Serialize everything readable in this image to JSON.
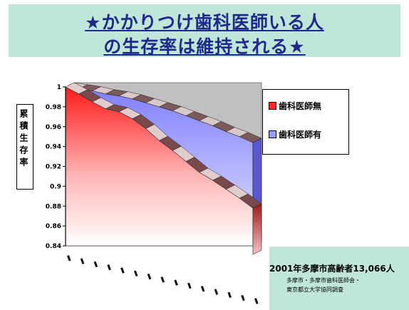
{
  "title": {
    "line1": "★かかりつけ歯科医師いる人",
    "line2": "の生存率は維持される★"
  },
  "colors": {
    "title_bg": "#bfe6d8",
    "title_text": "#1e2a8a",
    "series_no_dentist": "#ff2a2a",
    "series_has_dentist": "#9a9aff",
    "back_wall": "#c0c0c0"
  },
  "chart_data": {
    "type": "area",
    "ylabel": "累積生存率",
    "ylim": [
      0.84,
      1.0
    ],
    "y_ticks": [
      "1",
      "0.98",
      "0.96",
      "0.94",
      "0.92",
      "0.9",
      "0.88",
      "0.86",
      "0.84"
    ],
    "x_count": 15,
    "series": [
      {
        "name": "歯科医師無",
        "values": [
          1.0,
          0.993,
          0.985,
          0.978,
          0.975,
          0.968,
          0.958,
          0.946,
          0.936,
          0.925,
          0.914,
          0.906,
          0.897,
          0.888,
          0.878
        ]
      },
      {
        "name": "歯科医師有",
        "values": [
          1.0,
          0.998,
          0.996,
          0.993,
          0.991,
          0.988,
          0.984,
          0.98,
          0.976,
          0.971,
          0.966,
          0.961,
          0.955,
          0.95,
          0.944
        ]
      }
    ],
    "legend_position": "right"
  },
  "note": {
    "line1": "2001年多摩市高齢者13,066人",
    "line2": "多摩市・多摩市歯科医師会・",
    "line3": "東京都立大学協同調査"
  }
}
